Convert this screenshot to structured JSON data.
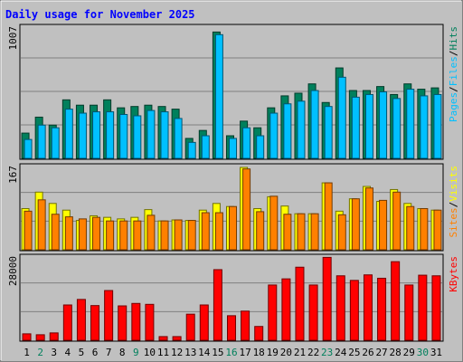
{
  "chart_data": [
    {
      "type": "bar",
      "title": "Daily usage for November 2025",
      "categories": [
        "1",
        "2",
        "3",
        "4",
        "5",
        "6",
        "7",
        "8",
        "9",
        "10",
        "11",
        "12",
        "13",
        "14",
        "15",
        "16",
        "17",
        "18",
        "19",
        "20",
        "21",
        "22",
        "23",
        "24",
        "25",
        "26",
        "27",
        "28",
        "29",
        "30",
        "31"
      ],
      "weekend_days": [
        "2",
        "9",
        "16",
        "23",
        "30"
      ],
      "ylim": [
        0,
        1007
      ],
      "ytick_label": "1007",
      "right_axis_labels": [
        "Pages",
        "Files",
        "Hits"
      ],
      "series": [
        {
          "name": "Hits",
          "color": "#00805c",
          "values": [
            190,
            310,
            250,
            440,
            400,
            400,
            440,
            380,
            390,
            400,
            390,
            370,
            150,
            210,
            950,
            170,
            280,
            230,
            380,
            470,
            490,
            560,
            420,
            680,
            510,
            510,
            540,
            480,
            560,
            520,
            530
          ]
        },
        {
          "name": "Files",
          "color": "#00c0ff",
          "values": [
            142,
            250,
            230,
            370,
            340,
            350,
            350,
            330,
            320,
            360,
            350,
            300,
            120,
            170,
            930,
            150,
            230,
            170,
            340,
            410,
            430,
            510,
            390,
            610,
            460,
            480,
            500,
            450,
            520,
            470,
            480
          ]
        }
      ]
    },
    {
      "type": "bar",
      "categories": [
        "1",
        "2",
        "3",
        "4",
        "5",
        "6",
        "7",
        "8",
        "9",
        "10",
        "11",
        "12",
        "13",
        "14",
        "15",
        "16",
        "17",
        "18",
        "19",
        "20",
        "21",
        "22",
        "23",
        "24",
        "25",
        "26",
        "27",
        "28",
        "29",
        "30",
        "31"
      ],
      "ylim": [
        0,
        167
      ],
      "ytick_label": "167",
      "right_axis_labels": [
        "Sites",
        "Visits"
      ],
      "series": [
        {
          "name": "Visits",
          "color": "#ffff00",
          "values": [
            80,
            112,
            90,
            77,
            57,
            66,
            63,
            60,
            63,
            78,
            56,
            58,
            57,
            77,
            90,
            84,
            160,
            80,
            103,
            85,
            70,
            70,
            130,
            75,
            99,
            123,
            94,
            117,
            90,
            80,
            77
          ]
        },
        {
          "name": "Sites",
          "color": "#ff8000",
          "values": [
            75,
            97,
            69,
            64,
            60,
            63,
            56,
            56,
            56,
            67,
            56,
            58,
            57,
            72,
            72,
            84,
            157,
            74,
            104,
            69,
            70,
            70,
            130,
            68,
            99,
            120,
            96,
            112,
            84,
            80,
            77
          ]
        }
      ]
    },
    {
      "type": "bar",
      "categories": [
        "1",
        "2",
        "3",
        "4",
        "5",
        "6",
        "7",
        "8",
        "9",
        "10",
        "11",
        "12",
        "13",
        "14",
        "15",
        "16",
        "17",
        "18",
        "19",
        "20",
        "21",
        "22",
        "23",
        "24",
        "25",
        "26",
        "27",
        "28",
        "29",
        "30",
        "31"
      ],
      "ylim": [
        0,
        28000
      ],
      "ytick_label": "28000",
      "right_axis_labels": [
        "KBytes"
      ],
      "series": [
        {
          "name": "KBytes",
          "color": "#ff0000",
          "values": [
            2100,
            1800,
            2400,
            11500,
            13300,
            11300,
            16200,
            11200,
            12000,
            11700,
            1200,
            1200,
            8500,
            11500,
            23000,
            8000,
            9500,
            4500,
            18000,
            20000,
            23800,
            18000,
            27000,
            21000,
            19500,
            21300,
            20200,
            25600,
            18000,
            21200,
            21000
          ]
        }
      ]
    }
  ]
}
